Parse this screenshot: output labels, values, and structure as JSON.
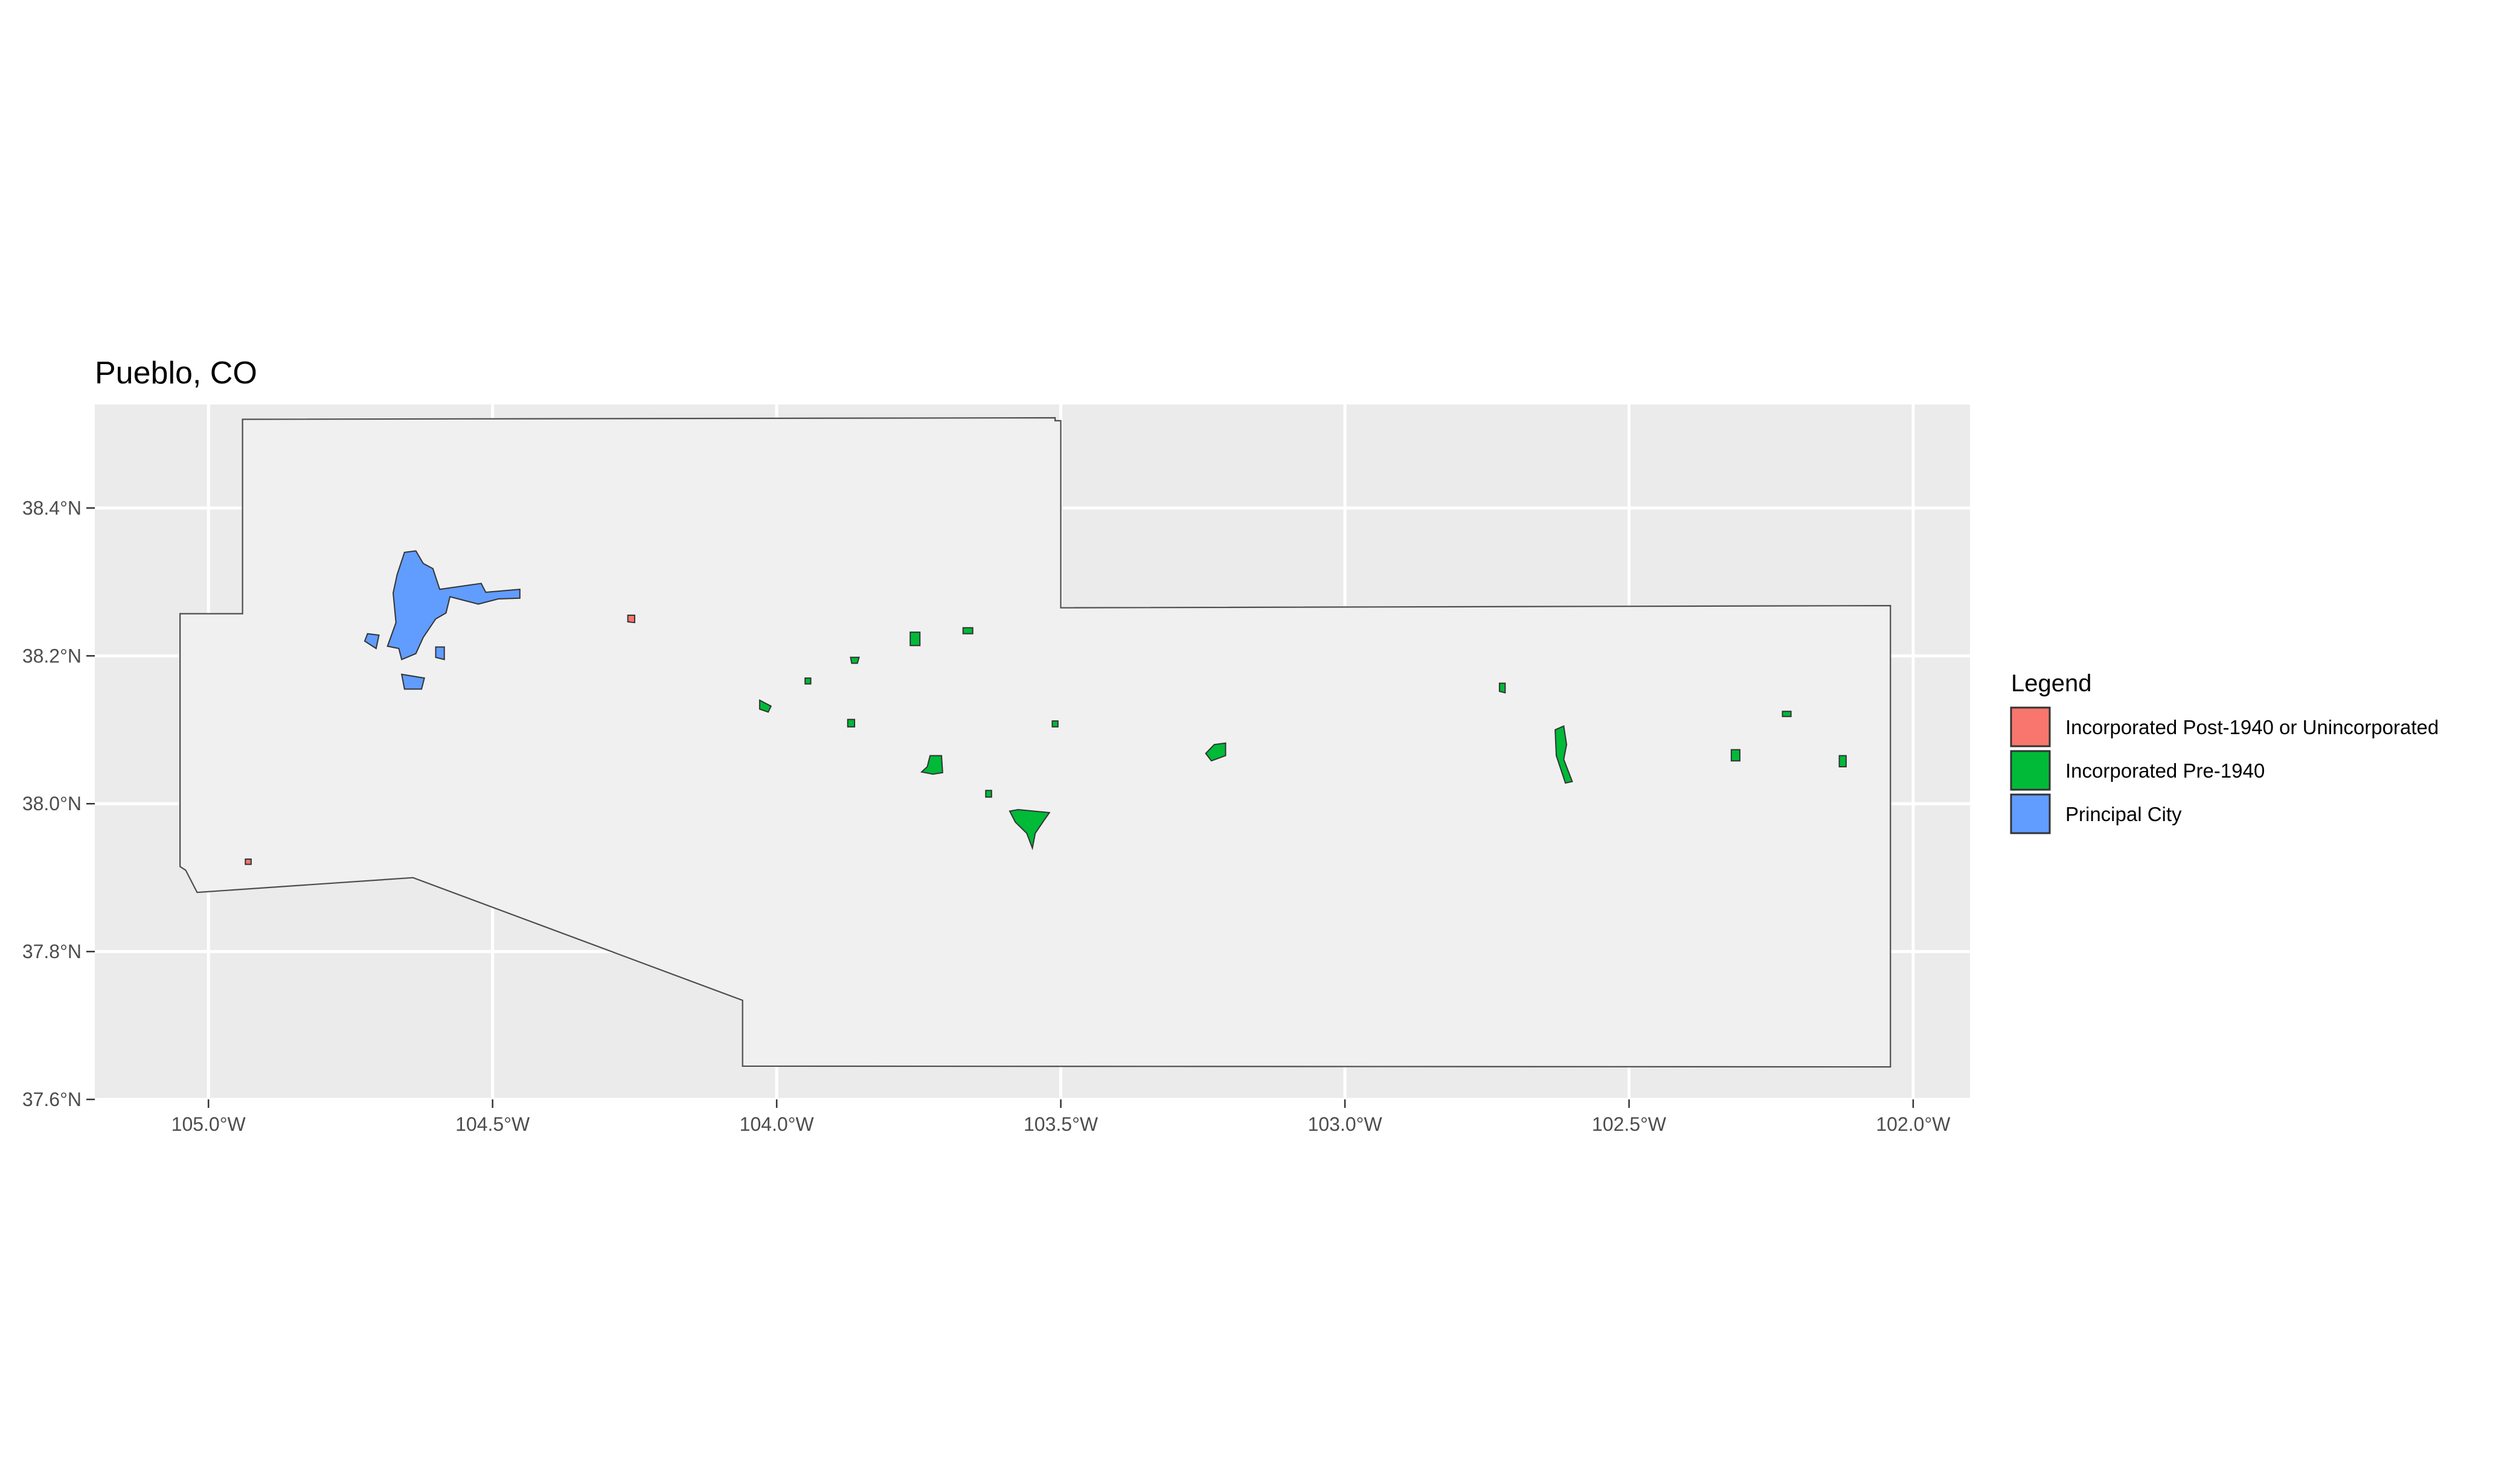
{
  "chart_data": {
    "type": "map",
    "title": "Pueblo, CO",
    "xlim": [
      -105.2,
      -101.9
    ],
    "ylim": [
      37.6,
      38.54
    ],
    "x_ticks": [
      {
        "value": -105.0,
        "label": "105.0°W"
      },
      {
        "value": -104.5,
        "label": "104.5°W"
      },
      {
        "value": -104.0,
        "label": "104.0°W"
      },
      {
        "value": -103.5,
        "label": "103.5°W"
      },
      {
        "value": -103.0,
        "label": "103.0°W"
      },
      {
        "value": -102.5,
        "label": "102.5°W"
      },
      {
        "value": -102.0,
        "label": "102.0°W"
      }
    ],
    "y_ticks": [
      {
        "value": 37.6,
        "label": "37.6°N"
      },
      {
        "value": 37.8,
        "label": "37.8°N"
      },
      {
        "value": 38.0,
        "label": "38.0°N"
      },
      {
        "value": 38.2,
        "label": "38.2°N"
      },
      {
        "value": 38.4,
        "label": "38.4°N"
      }
    ],
    "grid": true,
    "legend": {
      "title": "Legend",
      "placement": "right",
      "entries": [
        {
          "label": "Incorporated Post-1940 or Unincorporated",
          "color": "#f8766d"
        },
        {
          "label": "Incorporated Pre-1940",
          "color": "#00ba38"
        },
        {
          "label": "Principal City",
          "color": "#619cff"
        }
      ]
    },
    "county_outline": [
      [
        -104.94,
        38.52
      ],
      [
        -103.51,
        38.522
      ],
      [
        -103.51,
        38.518
      ],
      [
        -103.5,
        38.518
      ],
      [
        -103.5,
        38.345
      ],
      [
        -103.5,
        38.265
      ],
      [
        -102.04,
        38.268
      ],
      [
        -102.04,
        37.644
      ],
      [
        -104.06,
        37.645
      ],
      [
        -104.06,
        37.734
      ],
      [
        -104.64,
        37.9
      ],
      [
        -105.02,
        37.88
      ],
      [
        -105.04,
        37.91
      ],
      [
        -105.05,
        37.915
      ],
      [
        -105.05,
        38.257
      ],
      [
        -104.94,
        38.257
      ]
    ],
    "places": [
      {
        "category": 2,
        "polygon": [
          [
            -104.655,
            38.34
          ],
          [
            -104.635,
            38.342
          ],
          [
            -104.622,
            38.325
          ],
          [
            -104.605,
            38.318
          ],
          [
            -104.593,
            38.29
          ],
          [
            -104.52,
            38.298
          ],
          [
            -104.512,
            38.286
          ],
          [
            -104.452,
            38.29
          ],
          [
            -104.452,
            38.278
          ],
          [
            -104.49,
            38.277
          ],
          [
            -104.525,
            38.27
          ],
          [
            -104.575,
            38.28
          ],
          [
            -104.582,
            38.258
          ],
          [
            -104.6,
            38.25
          ],
          [
            -104.622,
            38.225
          ],
          [
            -104.635,
            38.203
          ],
          [
            -104.66,
            38.195
          ],
          [
            -104.665,
            38.21
          ],
          [
            -104.685,
            38.213
          ],
          [
            -104.67,
            38.245
          ],
          [
            -104.675,
            38.285
          ],
          [
            -104.668,
            38.31
          ]
        ]
      },
      {
        "category": 2,
        "polygon": [
          [
            -104.72,
            38.23
          ],
          [
            -104.7,
            38.228
          ],
          [
            -104.705,
            38.21
          ],
          [
            -104.725,
            38.22
          ]
        ]
      },
      {
        "category": 2,
        "polygon": [
          [
            -104.66,
            38.175
          ],
          [
            -104.62,
            38.17
          ],
          [
            -104.625,
            38.155
          ],
          [
            -104.655,
            38.155
          ]
        ]
      },
      {
        "category": 2,
        "polygon": [
          [
            -104.6,
            38.212
          ],
          [
            -104.585,
            38.212
          ],
          [
            -104.585,
            38.195
          ],
          [
            -104.6,
            38.198
          ]
        ]
      },
      {
        "category": 0,
        "polygon": [
          [
            -104.262,
            38.255
          ],
          [
            -104.25,
            38.255
          ],
          [
            -104.25,
            38.245
          ],
          [
            -104.262,
            38.246
          ]
        ]
      },
      {
        "category": 0,
        "polygon": [
          [
            -104.935,
            37.925
          ],
          [
            -104.925,
            37.925
          ],
          [
            -104.925,
            37.918
          ],
          [
            -104.935,
            37.918
          ]
        ]
      },
      {
        "category": 1,
        "polygon": [
          [
            -104.03,
            38.14
          ],
          [
            -104.01,
            38.132
          ],
          [
            -104.015,
            38.124
          ],
          [
            -104.03,
            38.128
          ]
        ]
      },
      {
        "category": 1,
        "polygon": [
          [
            -103.95,
            38.17
          ],
          [
            -103.94,
            38.17
          ],
          [
            -103.94,
            38.162
          ],
          [
            -103.95,
            38.162
          ]
        ]
      },
      {
        "category": 1,
        "polygon": [
          [
            -103.87,
            38.198
          ],
          [
            -103.855,
            38.198
          ],
          [
            -103.858,
            38.19
          ],
          [
            -103.868,
            38.19
          ]
        ]
      },
      {
        "category": 1,
        "polygon": [
          [
            -103.875,
            38.114
          ],
          [
            -103.863,
            38.114
          ],
          [
            -103.863,
            38.104
          ],
          [
            -103.875,
            38.104
          ]
        ]
      },
      {
        "category": 1,
        "polygon": [
          [
            -103.765,
            38.232
          ],
          [
            -103.748,
            38.232
          ],
          [
            -103.748,
            38.214
          ],
          [
            -103.765,
            38.214
          ]
        ]
      },
      {
        "category": 1,
        "polygon": [
          [
            -103.672,
            38.238
          ],
          [
            -103.655,
            38.238
          ],
          [
            -103.655,
            38.23
          ],
          [
            -103.672,
            38.23
          ]
        ]
      },
      {
        "category": 1,
        "polygon": [
          [
            -103.73,
            38.065
          ],
          [
            -103.71,
            38.065
          ],
          [
            -103.708,
            38.042
          ],
          [
            -103.725,
            38.04
          ],
          [
            -103.745,
            38.043
          ],
          [
            -103.735,
            38.05
          ]
        ]
      },
      {
        "category": 1,
        "polygon": [
          [
            -103.632,
            38.018
          ],
          [
            -103.622,
            38.018
          ],
          [
            -103.622,
            38.009
          ],
          [
            -103.632,
            38.009
          ]
        ]
      },
      {
        "category": 1,
        "polygon": [
          [
            -103.515,
            38.112
          ],
          [
            -103.505,
            38.112
          ],
          [
            -103.505,
            38.104
          ],
          [
            -103.515,
            38.104
          ]
        ]
      },
      {
        "category": 1,
        "polygon": [
          [
            -103.59,
            37.99
          ],
          [
            -103.575,
            37.992
          ],
          [
            -103.52,
            37.988
          ],
          [
            -103.53,
            37.977
          ],
          [
            -103.545,
            37.96
          ],
          [
            -103.55,
            37.94
          ],
          [
            -103.56,
            37.96
          ],
          [
            -103.58,
            37.975
          ]
        ]
      },
      {
        "category": 1,
        "polygon": [
          [
            -103.23,
            38.08
          ],
          [
            -103.21,
            38.082
          ],
          [
            -103.21,
            38.065
          ],
          [
            -103.235,
            38.058
          ],
          [
            -103.245,
            38.068
          ]
        ]
      },
      {
        "category": 1,
        "polygon": [
          [
            -102.728,
            38.163
          ],
          [
            -102.718,
            38.163
          ],
          [
            -102.718,
            38.15
          ],
          [
            -102.728,
            38.152
          ]
        ]
      },
      {
        "category": 1,
        "polygon": [
          [
            -102.63,
            38.1
          ],
          [
            -102.615,
            38.105
          ],
          [
            -102.61,
            38.08
          ],
          [
            -102.615,
            38.06
          ],
          [
            -102.605,
            38.04
          ],
          [
            -102.6,
            38.03
          ],
          [
            -102.612,
            38.028
          ],
          [
            -102.628,
            38.065
          ]
        ]
      },
      {
        "category": 1,
        "polygon": [
          [
            -102.32,
            38.073
          ],
          [
            -102.305,
            38.073
          ],
          [
            -102.305,
            38.058
          ],
          [
            -102.32,
            38.058
          ]
        ]
      },
      {
        "category": 1,
        "polygon": [
          [
            -102.23,
            38.125
          ],
          [
            -102.215,
            38.125
          ],
          [
            -102.215,
            38.118
          ],
          [
            -102.23,
            38.118
          ]
        ]
      },
      {
        "category": 1,
        "polygon": [
          [
            -102.13,
            38.065
          ],
          [
            -102.118,
            38.065
          ],
          [
            -102.118,
            38.05
          ],
          [
            -102.13,
            38.05
          ]
        ]
      }
    ]
  }
}
